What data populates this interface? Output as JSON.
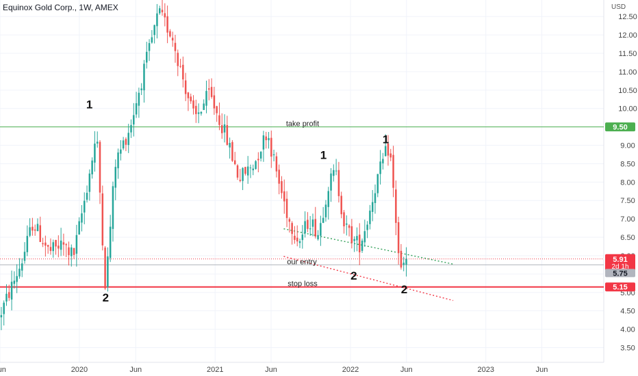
{
  "chart_data": {
    "type": "candlestick",
    "title": "Equinox Gold Corp., 1W, AMEX",
    "currency": "USD",
    "ylim": [
      3.1,
      12.95
    ],
    "y_ticks": [
      3.5,
      4.0,
      4.5,
      5.0,
      5.5,
      6.0,
      6.5,
      7.0,
      7.5,
      8.0,
      8.5,
      9.0,
      9.5,
      10.0,
      10.5,
      11.0,
      11.5,
      12.0,
      12.5
    ],
    "x_start": "2019-06-01",
    "x_end": "2023-11-15",
    "x_ticks": [
      {
        "date": "2019-06-01",
        "label": "Jun"
      },
      {
        "date": "2020-01-01",
        "label": "2020"
      },
      {
        "date": "2020-06-01",
        "label": "Jun"
      },
      {
        "date": "2021-01-01",
        "label": "2021"
      },
      {
        "date": "2021-06-01",
        "label": "Jun"
      },
      {
        "date": "2022-01-01",
        "label": "2022"
      },
      {
        "date": "2022-06-01",
        "label": "Jun"
      },
      {
        "date": "2023-01-01",
        "label": "2023"
      },
      {
        "date": "2023-06-01",
        "label": "Jun"
      }
    ],
    "colors": {
      "up": "#26a69a",
      "down": "#ef5350",
      "take_profit": "#4caf50",
      "stop_loss": "#f23645",
      "entry": "#b0b4bc",
      "trend_upper": "#2e9e55",
      "trend_lower": "#f23645"
    },
    "price_anchors": [
      {
        "date": "2019-06-01",
        "price": 4.3
      },
      {
        "date": "2019-08-01",
        "price": 5.8
      },
      {
        "date": "2019-09-01",
        "price": 6.9
      },
      {
        "date": "2019-10-15",
        "price": 6.1
      },
      {
        "date": "2019-11-20",
        "price": 6.3
      },
      {
        "date": "2019-12-20",
        "price": 6.0
      },
      {
        "date": "2020-01-20",
        "price": 7.6
      },
      {
        "date": "2020-02-20",
        "price": 9.3
      },
      {
        "date": "2020-03-15",
        "price": 5.1
      },
      {
        "date": "2020-04-10",
        "price": 8.5
      },
      {
        "date": "2020-05-20",
        "price": 9.5
      },
      {
        "date": "2020-07-01",
        "price": 11.2
      },
      {
        "date": "2020-08-05",
        "price": 12.6
      },
      {
        "date": "2020-09-10",
        "price": 12.0
      },
      {
        "date": "2020-10-05",
        "price": 11.0
      },
      {
        "date": "2020-11-10",
        "price": 9.7
      },
      {
        "date": "2020-12-20",
        "price": 10.4
      },
      {
        "date": "2021-02-01",
        "price": 9.3
      },
      {
        "date": "2021-03-10",
        "price": 8.1
      },
      {
        "date": "2021-04-20",
        "price": 8.5
      },
      {
        "date": "2021-05-25",
        "price": 9.4
      },
      {
        "date": "2021-06-25",
        "price": 8.0
      },
      {
        "date": "2021-07-25",
        "price": 6.9
      },
      {
        "date": "2021-08-20",
        "price": 6.4
      },
      {
        "date": "2021-09-15",
        "price": 7.0
      },
      {
        "date": "2021-10-10",
        "price": 6.6
      },
      {
        "date": "2021-11-05",
        "price": 7.9
      },
      {
        "date": "2021-11-25",
        "price": 8.3
      },
      {
        "date": "2021-12-20",
        "price": 6.8
      },
      {
        "date": "2022-01-15",
        "price": 6.4
      },
      {
        "date": "2022-01-30",
        "price": 6.3
      },
      {
        "date": "2022-02-20",
        "price": 7.0
      },
      {
        "date": "2022-03-15",
        "price": 8.0
      },
      {
        "date": "2022-04-10",
        "price": 8.8
      },
      {
        "date": "2022-04-20",
        "price": 8.95
      },
      {
        "date": "2022-05-05",
        "price": 7.2
      },
      {
        "date": "2022-05-15",
        "price": 6.0
      },
      {
        "date": "2022-05-22",
        "price": 5.5
      },
      {
        "date": "2022-06-01",
        "price": 5.91
      }
    ],
    "horizontal_lines": [
      {
        "name": "take-profit",
        "price": 9.5,
        "label": "take profit",
        "tag": "9.50"
      },
      {
        "name": "entry",
        "price": 5.75,
        "label": "our entry",
        "tag": "5.75"
      },
      {
        "name": "stop-loss",
        "price": 5.15,
        "label": "stop loss",
        "tag": "5.15"
      }
    ],
    "last_price": {
      "price": 5.91,
      "label": "5.91",
      "countdown": "2d 1h"
    },
    "trendlines": [
      {
        "name": "upper",
        "from": {
          "date": "2021-07-05",
          "price": 6.73
        },
        "to": {
          "date": "2022-10-05",
          "price": 5.77
        }
      },
      {
        "name": "lower",
        "from": {
          "date": "2021-07-05",
          "price": 5.98
        },
        "to": {
          "date": "2022-10-05",
          "price": 4.78
        }
      }
    ],
    "wave_labels": [
      {
        "text": "1",
        "date": "2020-01-28",
        "price": 10.0
      },
      {
        "text": "2",
        "date": "2020-03-12",
        "price": 4.75
      },
      {
        "text": "1",
        "date": "2021-10-20",
        "price": 8.63
      },
      {
        "text": "2",
        "date": "2022-01-10",
        "price": 5.35
      },
      {
        "text": "1",
        "date": "2022-04-06",
        "price": 9.06
      },
      {
        "text": "2",
        "date": "2022-05-26",
        "price": 4.98
      }
    ]
  }
}
